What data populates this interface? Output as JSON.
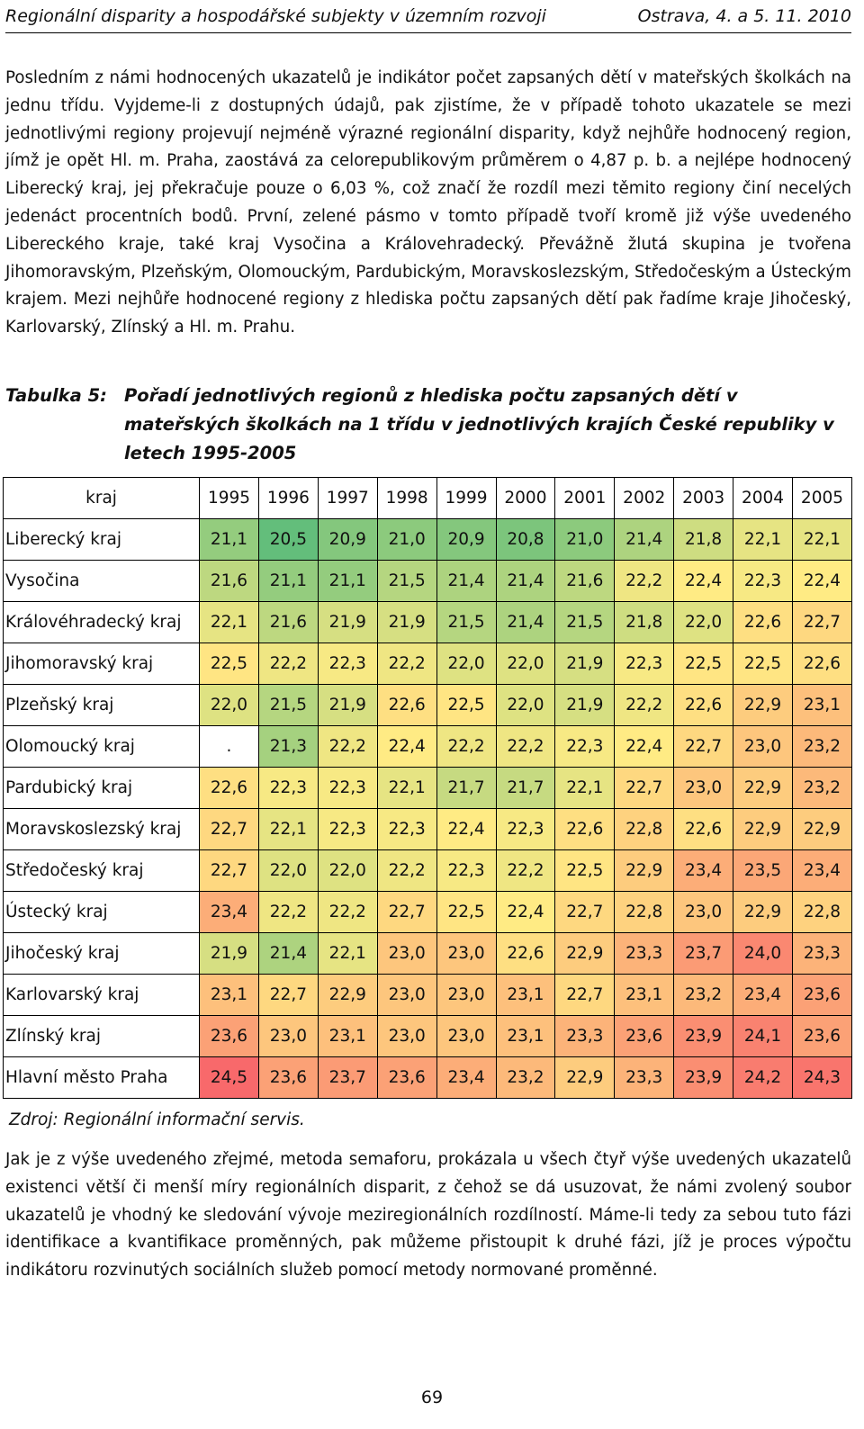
{
  "header": {
    "left": "Regionální disparity a hospodářské subjekty v územním rozvoji",
    "right": "Ostrava, 4. a 5. 11. 2010"
  },
  "paragraph1": "Posledním z námi hodnocených ukazatelů je indikátor počet zapsaných dětí v mateřských školkách na jednu třídu. Vyjdeme-li z dostupných údajů, pak zjistíme, že v případě tohoto ukazatele se mezi jednotlivými regiony projevují nejméně výrazné regionální disparity, když nejhůře hodnocený region, jímž je opět Hl. m. Praha, zaostává za celorepublikovým průměrem o 4,87 p. b. a nejlépe hodnocený Liberecký kraj, jej překračuje pouze o 6,03 %, což značí že rozdíl mezi těmito regiony činí necelých jedenáct procentních bodů. První, zelené pásmo v tomto případě tvoří kromě již výše uvedeného Libereckého kraje, také kraj Vysočina a Královehradecký. Převážně žlutá skupina je tvořena Jihomoravským, Plzeňským, Olomouckým, Pardubickým, Moravskoslezským, Středočeským a Ústeckým krajem. Mezi nejhůře hodnocené regiony z hlediska počtu zapsaných dětí pak řadíme kraje Jihočeský, Karlovarský, Zlínský a Hl. m. Prahu.",
  "caption": {
    "label": "Tabulka 5:",
    "text": "Pořadí jednotlivých regionů z hlediska počtu zapsaných dětí v mateřských školkách na 1 třídu v jednotlivých krajích České republiky v letech 1995-2005"
  },
  "chart_data": {
    "type": "table",
    "title": "Pořadí jednotlivých regionů z hlediska počtu zapsaných dětí v mateřských školkách na 1 třídu v jednotlivých krajích České republiky v letech 1995-2005",
    "corner": "kraj",
    "years": [
      "1995",
      "1996",
      "1997",
      "1998",
      "1999",
      "2000",
      "2001",
      "2002",
      "2003",
      "2004",
      "2005"
    ],
    "rows": [
      {
        "region": "Liberecký kraj",
        "values": [
          "21,1",
          "20,5",
          "20,9",
          "21,0",
          "20,9",
          "20,8",
          "21,0",
          "21,4",
          "21,8",
          "22,1",
          "22,1"
        ]
      },
      {
        "region": "Vysočina",
        "values": [
          "21,6",
          "21,1",
          "21,1",
          "21,5",
          "21,4",
          "21,4",
          "21,6",
          "22,2",
          "22,4",
          "22,3",
          "22,4"
        ]
      },
      {
        "region": "Královéhradecký kraj",
        "values": [
          "22,1",
          "21,6",
          "21,9",
          "21,9",
          "21,5",
          "21,4",
          "21,5",
          "21,8",
          "22,0",
          "22,6",
          "22,7"
        ]
      },
      {
        "region": "Jihomoravský kraj",
        "values": [
          "22,5",
          "22,2",
          "22,3",
          "22,2",
          "22,0",
          "22,0",
          "21,9",
          "22,3",
          "22,5",
          "22,5",
          "22,6"
        ]
      },
      {
        "region": "Plzeňský kraj",
        "values": [
          "22,0",
          "21,5",
          "21,9",
          "22,6",
          "22,5",
          "22,0",
          "21,9",
          "22,2",
          "22,6",
          "22,9",
          "23,1"
        ]
      },
      {
        "region": "Olomoucký kraj",
        "values": [
          ".",
          "21,3",
          "22,2",
          "22,4",
          "22,2",
          "22,2",
          "22,3",
          "22,4",
          "22,7",
          "23,0",
          "23,2"
        ]
      },
      {
        "region": "Pardubický kraj",
        "values": [
          "22,6",
          "22,3",
          "22,3",
          "22,1",
          "21,7",
          "21,7",
          "22,1",
          "22,7",
          "23,0",
          "22,9",
          "23,2"
        ]
      },
      {
        "region": "Moravskoslezský kraj",
        "values": [
          "22,7",
          "22,1",
          "22,3",
          "22,3",
          "22,4",
          "22,3",
          "22,6",
          "22,8",
          "22,6",
          "22,9",
          "22,9"
        ]
      },
      {
        "region": "Středočeský kraj",
        "values": [
          "22,7",
          "22,0",
          "22,0",
          "22,2",
          "22,3",
          "22,2",
          "22,5",
          "22,9",
          "23,4",
          "23,5",
          "23,4"
        ]
      },
      {
        "region": "Ústecký kraj",
        "values": [
          "23,4",
          "22,2",
          "22,2",
          "22,7",
          "22,5",
          "22,4",
          "22,7",
          "22,8",
          "23,0",
          "22,9",
          "22,8"
        ]
      },
      {
        "region": "Jihočeský kraj",
        "values": [
          "21,9",
          "21,4",
          "22,1",
          "23,0",
          "23,0",
          "22,6",
          "22,9",
          "23,3",
          "23,7",
          "24,0",
          "23,3"
        ]
      },
      {
        "region": "Karlovarský kraj",
        "values": [
          "23,1",
          "22,7",
          "22,9",
          "23,0",
          "23,0",
          "23,1",
          "22,7",
          "23,1",
          "23,2",
          "23,4",
          "23,6"
        ]
      },
      {
        "region": "Zlínský kraj",
        "values": [
          "23,6",
          "23,0",
          "23,1",
          "23,0",
          "23,0",
          "23,1",
          "23,3",
          "23,6",
          "23,9",
          "24,1",
          "23,6"
        ]
      },
      {
        "region": "Hlavní město Praha",
        "values": [
          "24,5",
          "23,6",
          "23,7",
          "23,6",
          "23,4",
          "23,2",
          "22,9",
          "23,3",
          "23,9",
          "24,2",
          "24,3"
        ]
      }
    ],
    "color_scale": {
      "low": "#63be7b",
      "mid": "#ffeb84",
      "high": "#f8696b",
      "min": 20.5,
      "mid_value": 22.4,
      "max": 24.5
    }
  },
  "source": "Zdroj: Regionální informační servis.",
  "paragraph2": "Jak je z výše uvedeného zřejmé, metoda semaforu, prokázala u všech čtyř výše uvedených ukazatelů existenci větší či menší míry regionálních disparit, z čehož se dá usuzovat, že námi zvolený soubor ukazatelů je vhodný ke sledování vývoje meziregionálních rozdílností. Máme-li tedy za sebou tuto fázi identifikace a kvantifikace proměnných, pak můžeme přistoupit k druhé fázi, jíž je proces výpočtu indikátoru rozvinutých sociálních služeb pomocí metody normované proměnné.",
  "page_number": "69"
}
